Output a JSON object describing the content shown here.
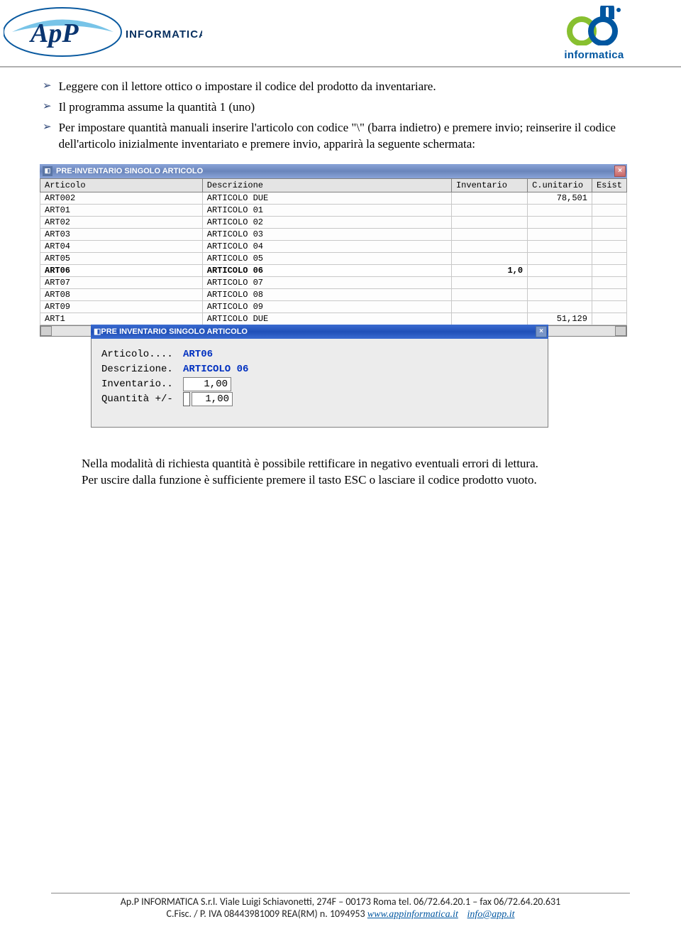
{
  "logos": {
    "left_app": "ApP",
    "left_inf": "INFORMATICA",
    "right_label": "informatica"
  },
  "bullets": [
    "Leggere con il lettore ottico o impostare il codice del prodotto da inventariare.",
    "Il programma assume la quantità 1 (uno)",
    "Per impostare quantità manuali inserire l'articolo con codice \"\\\" (barra indietro) e premere invio; reinserire il codice dell'articolo inizialmente inventariato e premere invio, apparirà la seguente schermata:"
  ],
  "win1": {
    "title": "PRE-INVENTARIO SINGOLO ARTICOLO",
    "columns": [
      "Articolo",
      "Descrizione",
      "Inventario",
      "C.unitario",
      "Esist"
    ],
    "rows": [
      {
        "art": "ART002",
        "desc": "ARTICOLO DUE",
        "inv": "",
        "cu": "78,501",
        "es": ""
      },
      {
        "art": "ART01",
        "desc": "ARTICOLO 01",
        "inv": "",
        "cu": "",
        "es": ""
      },
      {
        "art": "ART02",
        "desc": "ARTICOLO 02",
        "inv": "",
        "cu": "",
        "es": ""
      },
      {
        "art": "ART03",
        "desc": "ARTICOLO 03",
        "inv": "",
        "cu": "",
        "es": ""
      },
      {
        "art": "ART04",
        "desc": "ARTICOLO 04",
        "inv": "",
        "cu": "",
        "es": ""
      },
      {
        "art": "ART05",
        "desc": "ARTICOLO 05",
        "inv": "",
        "cu": "",
        "es": ""
      },
      {
        "art": "ART06",
        "desc": "ARTICOLO 06",
        "inv": "1,0",
        "cu": "",
        "es": "",
        "sel": true
      },
      {
        "art": "ART07",
        "desc": "ARTICOLO 07",
        "inv": "",
        "cu": "",
        "es": ""
      },
      {
        "art": "ART08",
        "desc": "ARTICOLO 08",
        "inv": "",
        "cu": "",
        "es": ""
      },
      {
        "art": "ART09",
        "desc": "ARTICOLO 09",
        "inv": "",
        "cu": "",
        "es": ""
      },
      {
        "art": "ART1",
        "desc": "ARTICOLO DUE",
        "inv": "",
        "cu": "51,129",
        "es": ""
      }
    ]
  },
  "win2": {
    "title": "PRE INVENTARIO SINGOLO ARTICOLO",
    "fields": {
      "art_lbl": "Articolo....",
      "art_val": "ART06",
      "desc_lbl": "Descrizione.",
      "desc_val": "ARTICOLO 06",
      "inv_lbl": "Inventario..",
      "inv_val": "1,00",
      "qty_lbl": "Quantità +/-",
      "qty_val": "1,00"
    }
  },
  "post": [
    "Nella modalità di richiesta quantità è possibile rettificare in negativo eventuali errori di lettura.",
    "Per uscire dalla funzione è sufficiente premere il tasto ESC o lasciare il codice prodotto vuoto."
  ],
  "footer": {
    "line1_a": "Ap.P INFORMATICA S.r.l.  Viale Luigi Schiavonetti, 274F – 00173 Roma   tel. 06/72.64.20.1 – fax 06/72.64.20.631",
    "line2_a": "C.Fisc. / P. IVA 08443981009    REA(RM) n. 1094953  ",
    "link1": "www.appinformatica.it",
    "link2": "info@app.it"
  }
}
